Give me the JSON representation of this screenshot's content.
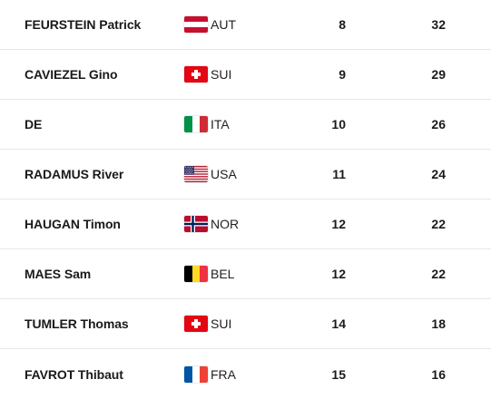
{
  "rows": [
    {
      "name": "FEURSTEIN Patrick",
      "flag": "austria-flag-icon",
      "nation": "AUT",
      "rank": "8",
      "points": "32"
    },
    {
      "name": "CAVIEZEL Gino",
      "flag": "switzerland-flag-icon",
      "nation": "SUI",
      "rank": "9",
      "points": "29"
    },
    {
      "name": "DE",
      "flag": "italy-flag-icon",
      "nation": "ITA",
      "rank": "10",
      "points": "26"
    },
    {
      "name": "RADAMUS River",
      "flag": "usa-flag-icon",
      "nation": "USA",
      "rank": "11",
      "points": "24"
    },
    {
      "name": "HAUGAN Timon",
      "flag": "norway-flag-icon",
      "nation": "NOR",
      "rank": "12",
      "points": "22"
    },
    {
      "name": "MAES Sam",
      "flag": "belgium-flag-icon",
      "nation": "BEL",
      "rank": "12",
      "points": "22"
    },
    {
      "name": "TUMLER Thomas",
      "flag": "switzerland-flag-icon",
      "nation": "SUI",
      "rank": "14",
      "points": "18"
    },
    {
      "name": "FAVROT Thibaut",
      "flag": "france-flag-icon",
      "nation": "FRA",
      "rank": "15",
      "points": "16"
    }
  ],
  "colors": {
    "text": "#1a1a1a",
    "divider": "#e6e6e6",
    "austria_red": "#c8102e",
    "swiss_red": "#e30613",
    "italy_green": "#009246",
    "italy_red": "#ce2b37",
    "usa_red": "#b22234",
    "usa_blue": "#3c3b6e",
    "norway_red": "#ba0c2f",
    "norway_blue": "#00205b",
    "belgium_yellow": "#fdda24",
    "belgium_red": "#ef3340",
    "france_blue": "#0055a4",
    "france_red": "#ef4135"
  }
}
